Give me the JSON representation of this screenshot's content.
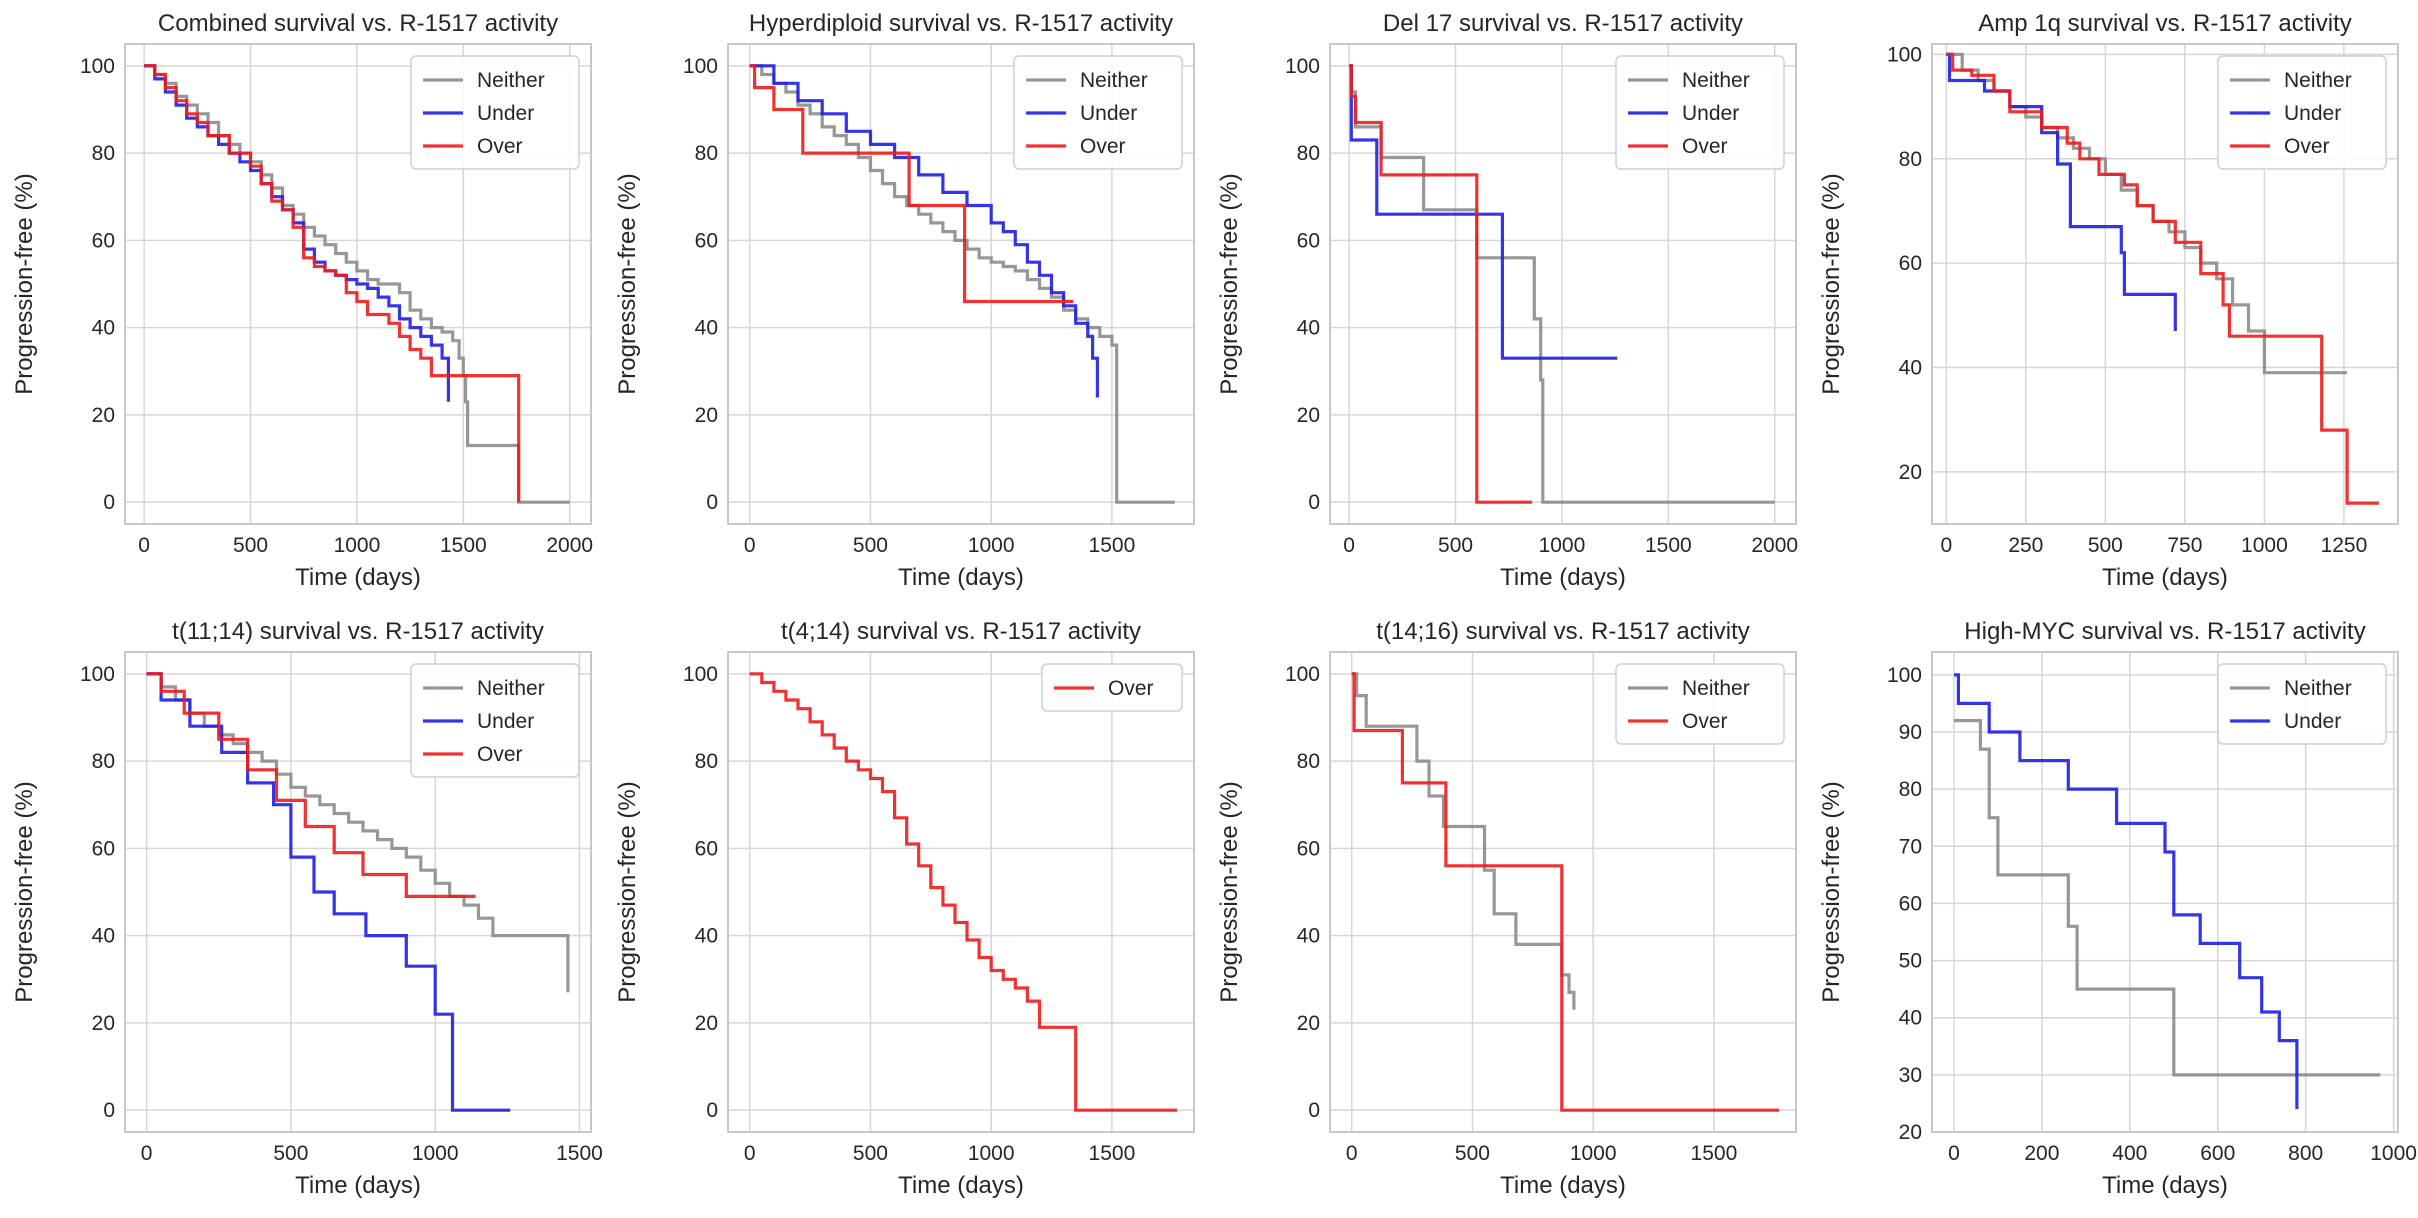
{
  "figure": {
    "ylabel": "Progression-free (%)",
    "xlabel": "Time (days)"
  },
  "colors": {
    "Neither": "#8c8c8c",
    "Under": "#1f1fe6",
    "Over": "#ee1c1c",
    "grid": "#d6d6d6",
    "frame": "#c8c8c8"
  },
  "chart_data": [
    {
      "type": "line",
      "step": true,
      "title": "Combined survival vs. R-1517 activity",
      "xlabel": "Time (days)",
      "ylabel": "Progression-free (%)",
      "xlim": [
        -90,
        2100
      ],
      "ylim": [
        -5,
        105
      ],
      "xticks": [
        0,
        500,
        1000,
        1500,
        2000
      ],
      "yticks": [
        0,
        20,
        40,
        60,
        80,
        100
      ],
      "legend": [
        "Neither",
        "Under",
        "Over"
      ],
      "series": [
        {
          "name": "Neither",
          "x": [
            0,
            50,
            100,
            150,
            200,
            250,
            300,
            350,
            400,
            450,
            500,
            550,
            600,
            650,
            700,
            750,
            800,
            850,
            900,
            950,
            1000,
            1050,
            1100,
            1150,
            1200,
            1250,
            1300,
            1350,
            1400,
            1450,
            1480,
            1500,
            1510,
            1520,
            1760,
            2000
          ],
          "y": [
            100,
            98,
            96,
            93,
            91,
            89,
            87,
            84,
            82,
            80,
            78,
            75,
            72,
            68,
            66,
            63,
            61,
            59,
            57,
            55,
            53,
            51,
            50,
            50,
            48,
            44,
            42,
            40,
            39,
            37,
            33,
            29,
            23,
            13,
            0,
            0
          ]
        },
        {
          "name": "Under",
          "x": [
            0,
            50,
            100,
            150,
            200,
            250,
            300,
            350,
            400,
            450,
            500,
            550,
            600,
            650,
            700,
            750,
            800,
            850,
            900,
            950,
            1000,
            1050,
            1100,
            1150,
            1200,
            1250,
            1300,
            1350,
            1400,
            1430
          ],
          "y": [
            100,
            97,
            94,
            91,
            88,
            86,
            84,
            82,
            80,
            78,
            76,
            73,
            70,
            67,
            64,
            58,
            55,
            53,
            52,
            51,
            50,
            49,
            47,
            45,
            42,
            40,
            38,
            36,
            33,
            23
          ]
        },
        {
          "name": "Over",
          "x": [
            0,
            50,
            100,
            150,
            200,
            250,
            300,
            350,
            400,
            450,
            500,
            550,
            600,
            650,
            700,
            750,
            800,
            850,
            900,
            950,
            1000,
            1050,
            1100,
            1150,
            1200,
            1250,
            1300,
            1350,
            1760
          ],
          "y": [
            100,
            98,
            95,
            92,
            89,
            87,
            84,
            84,
            80,
            80,
            77,
            73,
            69,
            67,
            63,
            56,
            54,
            53,
            52,
            48,
            46,
            43,
            43,
            41,
            38,
            35,
            33,
            29,
            0
          ]
        }
      ]
    },
    {
      "type": "line",
      "step": true,
      "title": "Hyperdiploid survival vs. R-1517 activity",
      "xlabel": "Time (days)",
      "ylabel": "Progression-free (%)",
      "xlim": [
        -90,
        1840
      ],
      "ylim": [
        -5,
        105
      ],
      "xticks": [
        0,
        500,
        1000,
        1500
      ],
      "yticks": [
        0,
        20,
        40,
        60,
        80,
        100
      ],
      "legend": [
        "Neither",
        "Under",
        "Over"
      ],
      "series": [
        {
          "name": "Neither",
          "x": [
            0,
            50,
            100,
            150,
            200,
            250,
            300,
            350,
            400,
            450,
            500,
            550,
            600,
            650,
            700,
            750,
            800,
            850,
            900,
            950,
            1000,
            1050,
            1100,
            1150,
            1200,
            1250,
            1300,
            1350,
            1400,
            1450,
            1500,
            1520,
            1760
          ],
          "y": [
            100,
            98,
            96,
            94,
            91,
            89,
            86,
            84,
            82,
            79,
            76,
            73,
            70,
            68,
            66,
            64,
            62,
            60,
            58,
            56,
            55,
            54,
            53,
            51,
            49,
            47,
            44,
            42,
            40,
            38,
            36,
            0,
            0
          ]
        },
        {
          "name": "Under",
          "x": [
            0,
            100,
            200,
            300,
            400,
            500,
            600,
            700,
            800,
            900,
            1000,
            1050,
            1100,
            1150,
            1200,
            1250,
            1300,
            1350,
            1400,
            1420,
            1440
          ],
          "y": [
            100,
            96,
            92,
            89,
            85,
            82,
            79,
            75,
            71,
            68,
            64,
            62,
            59,
            55,
            52,
            48,
            45,
            41,
            38,
            33,
            24
          ]
        },
        {
          "name": "Over",
          "x": [
            0,
            20,
            100,
            220,
            660,
            890,
            1340
          ],
          "y": [
            100,
            95,
            90,
            80,
            68,
            46,
            46
          ]
        }
      ]
    },
    {
      "type": "line",
      "step": true,
      "title": "Del 17 survival vs. R-1517 activity",
      "xlabel": "Time (days)",
      "ylabel": "Progression-free (%)",
      "xlim": [
        -90,
        2100
      ],
      "ylim": [
        -5,
        105
      ],
      "xticks": [
        0,
        500,
        1000,
        1500,
        2000
      ],
      "yticks": [
        0,
        20,
        40,
        60,
        80,
        100
      ],
      "legend": [
        "Neither",
        "Under",
        "Over"
      ],
      "series": [
        {
          "name": "Neither",
          "x": [
            0,
            10,
            30,
            150,
            350,
            600,
            870,
            900,
            910,
            2000
          ],
          "y": [
            100,
            94,
            86,
            79,
            67,
            56,
            42,
            28,
            0,
            0
          ]
        },
        {
          "name": "Under",
          "x": [
            0,
            10,
            130,
            720,
            1260
          ],
          "y": [
            100,
            83,
            66,
            33,
            33
          ]
        },
        {
          "name": "Over",
          "x": [
            0,
            10,
            30,
            150,
            600,
            860
          ],
          "y": [
            100,
            93,
            87,
            75,
            0,
            0
          ]
        }
      ]
    },
    {
      "type": "line",
      "step": true,
      "title": "Amp 1q survival vs. R-1517 activity",
      "xlabel": "Time (days)",
      "ylabel": "Progression-free (%)",
      "xlim": [
        -45,
        1420
      ],
      "ylim": [
        10,
        102
      ],
      "xticks": [
        0,
        250,
        500,
        750,
        1000,
        1250
      ],
      "yticks": [
        20,
        40,
        60,
        80,
        100
      ],
      "legend": [
        "Neither",
        "Under",
        "Over"
      ],
      "series": [
        {
          "name": "Neither",
          "x": [
            0,
            50,
            100,
            150,
            200,
            250,
            300,
            350,
            400,
            450,
            500,
            550,
            600,
            650,
            700,
            750,
            800,
            850,
            900,
            950,
            1000,
            1260
          ],
          "y": [
            100,
            97,
            95,
            93,
            90,
            88,
            86,
            84,
            82,
            80,
            77,
            74,
            71,
            68,
            66,
            63,
            60,
            57,
            52,
            47,
            39,
            39
          ]
        },
        {
          "name": "Under",
          "x": [
            0,
            10,
            120,
            200,
            300,
            350,
            390,
            550,
            560,
            720
          ],
          "y": [
            100,
            95,
            93,
            90,
            85,
            79,
            67,
            62,
            54,
            47
          ]
        },
        {
          "name": "Over",
          "x": [
            0,
            20,
            80,
            150,
            200,
            300,
            380,
            420,
            480,
            560,
            600,
            650,
            720,
            800,
            870,
            890,
            1180,
            1260,
            1360
          ],
          "y": [
            100,
            97,
            96,
            93,
            89,
            86,
            83,
            80,
            77,
            75,
            71,
            68,
            64,
            58,
            52,
            46,
            28,
            14,
            14
          ]
        }
      ]
    },
    {
      "type": "line",
      "step": true,
      "title": "t(11;14) survival vs. R-1517 activity",
      "xlabel": "Time (days)",
      "ylabel": "Progression-free (%)",
      "xlim": [
        -75,
        1540
      ],
      "ylim": [
        -5,
        105
      ],
      "xticks": [
        0,
        500,
        1000,
        1500
      ],
      "yticks": [
        0,
        20,
        40,
        60,
        80,
        100
      ],
      "legend": [
        "Neither",
        "Under",
        "Over"
      ],
      "series": [
        {
          "name": "Neither",
          "x": [
            0,
            50,
            100,
            150,
            200,
            250,
            300,
            350,
            400,
            450,
            500,
            550,
            600,
            650,
            700,
            750,
            800,
            850,
            900,
            950,
            1000,
            1050,
            1100,
            1150,
            1200,
            1460
          ],
          "y": [
            100,
            97,
            94,
            91,
            88,
            86,
            84,
            82,
            80,
            77,
            74,
            72,
            70,
            68,
            66,
            64,
            62,
            60,
            58,
            55,
            52,
            49,
            47,
            44,
            40,
            27
          ]
        },
        {
          "name": "Under",
          "x": [
            0,
            50,
            150,
            260,
            350,
            440,
            500,
            580,
            650,
            760,
            900,
            1000,
            1060,
            1260
          ],
          "y": [
            100,
            94,
            88,
            82,
            75,
            70,
            58,
            50,
            45,
            40,
            33,
            22,
            0,
            0
          ]
        },
        {
          "name": "Over",
          "x": [
            0,
            50,
            130,
            250,
            350,
            450,
            550,
            650,
            750,
            900,
            1140
          ],
          "y": [
            100,
            96,
            91,
            85,
            78,
            71,
            65,
            59,
            54,
            49,
            49
          ]
        }
      ]
    },
    {
      "type": "line",
      "step": true,
      "title": "t(4;14) survival vs. R-1517 activity",
      "xlabel": "Time (days)",
      "ylabel": "Progression-free (%)",
      "xlim": [
        -90,
        1840
      ],
      "ylim": [
        -5,
        105
      ],
      "xticks": [
        0,
        500,
        1000,
        1500
      ],
      "yticks": [
        0,
        20,
        40,
        60,
        80,
        100
      ],
      "legend": [
        "Over"
      ],
      "series": [
        {
          "name": "Over",
          "x": [
            0,
            50,
            100,
            150,
            200,
            250,
            300,
            350,
            400,
            450,
            500,
            550,
            600,
            650,
            700,
            750,
            800,
            850,
            900,
            950,
            1000,
            1050,
            1100,
            1150,
            1200,
            1350,
            1770
          ],
          "y": [
            100,
            98,
            96,
            94,
            92,
            89,
            86,
            83,
            80,
            78,
            76,
            73,
            67,
            61,
            56,
            51,
            47,
            43,
            39,
            35,
            32,
            30,
            28,
            25,
            19,
            0,
            0
          ]
        }
      ]
    },
    {
      "type": "line",
      "step": true,
      "title": "t(14;16) survival vs. R-1517 activity",
      "xlabel": "Time (days)",
      "ylabel": "Progression-free (%)",
      "xlim": [
        -90,
        1840
      ],
      "ylim": [
        -5,
        105
      ],
      "xticks": [
        0,
        500,
        1000,
        1500
      ],
      "yticks": [
        0,
        20,
        40,
        60,
        80,
        100
      ],
      "legend": [
        "Neither",
        "Over"
      ],
      "series": [
        {
          "name": "Neither",
          "x": [
            0,
            20,
            60,
            270,
            320,
            380,
            550,
            590,
            680,
            870,
            900,
            920
          ],
          "y": [
            100,
            95,
            88,
            80,
            72,
            65,
            55,
            45,
            38,
            31,
            27,
            23
          ]
        },
        {
          "name": "Over",
          "x": [
            0,
            10,
            210,
            390,
            870,
            1770
          ],
          "y": [
            100,
            87,
            75,
            56,
            0,
            0
          ]
        }
      ]
    },
    {
      "type": "line",
      "step": true,
      "title": "High-MYC survival vs. R-1517 activity",
      "xlabel": "Time (days)",
      "ylabel": "Progression-free (%)",
      "xlim": [
        -50,
        1010
      ],
      "ylim": [
        20,
        104
      ],
      "xticks": [
        0,
        200,
        400,
        600,
        800,
        1000
      ],
      "yticks": [
        20,
        30,
        40,
        50,
        60,
        70,
        80,
        90,
        100
      ],
      "legend": [
        "Neither",
        "Under"
      ],
      "series": [
        {
          "name": "Neither",
          "x": [
            0,
            60,
            80,
            100,
            260,
            280,
            500,
            970
          ],
          "y": [
            92,
            87,
            75,
            65,
            56,
            45,
            30,
            30
          ]
        },
        {
          "name": "Under",
          "x": [
            0,
            10,
            80,
            150,
            260,
            370,
            480,
            500,
            560,
            650,
            700,
            740,
            780
          ],
          "y": [
            100,
            95,
            90,
            85,
            80,
            74,
            69,
            58,
            53,
            47,
            41,
            36,
            24
          ]
        }
      ]
    }
  ]
}
